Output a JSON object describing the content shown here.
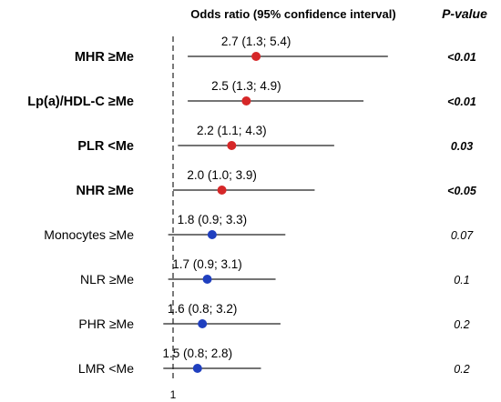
{
  "header": {
    "or_label": "Odds ratio (95% confidence interval)",
    "p_label": "P-value"
  },
  "chart_data": {
    "type": "forest",
    "reference_line": 1,
    "x_tick_labels": [
      "1"
    ],
    "colors": {
      "significant": "#d62728",
      "non_significant": "#1f3fbf",
      "line": "#222222"
    },
    "rows": [
      {
        "label": "MHR ≥Me",
        "or": 2.7,
        "ci_low": 1.3,
        "ci_high": 5.4,
        "estimate_text": "2.7 (1.3; 5.4)",
        "p_value": "<0.01",
        "significant": true
      },
      {
        "label": "Lp(a)/HDL-C ≥Me",
        "or": 2.5,
        "ci_low": 1.3,
        "ci_high": 4.9,
        "estimate_text": "2.5 (1.3; 4.9)",
        "p_value": "<0.01",
        "significant": true
      },
      {
        "label": "PLR <Me",
        "or": 2.2,
        "ci_low": 1.1,
        "ci_high": 4.3,
        "estimate_text": "2.2 (1.1; 4.3)",
        "p_value": "0.03",
        "significant": true
      },
      {
        "label": "NHR ≥Me",
        "or": 2.0,
        "ci_low": 1.0,
        "ci_high": 3.9,
        "estimate_text": "2.0 (1.0; 3.9)",
        "p_value": "<0.05",
        "significant": true
      },
      {
        "label": "Monocytes ≥Me",
        "or": 1.8,
        "ci_low": 0.9,
        "ci_high": 3.3,
        "estimate_text": "1.8 (0.9; 3.3)",
        "p_value": "0.07",
        "significant": false
      },
      {
        "label": "NLR ≥Me",
        "or": 1.7,
        "ci_low": 0.9,
        "ci_high": 3.1,
        "estimate_text": "1.7 (0.9; 3.1)",
        "p_value": "0.1",
        "significant": false
      },
      {
        "label": "PHR ≥Me",
        "or": 1.6,
        "ci_low": 0.8,
        "ci_high": 3.2,
        "estimate_text": "1.6 (0.8; 3.2)",
        "p_value": "0.2",
        "significant": false
      },
      {
        "label": "LMR <Me",
        "or": 1.5,
        "ci_low": 0.8,
        "ci_high": 2.8,
        "estimate_text": "1.5 (0.8; 2.8)",
        "p_value": "0.2",
        "significant": false
      }
    ]
  }
}
